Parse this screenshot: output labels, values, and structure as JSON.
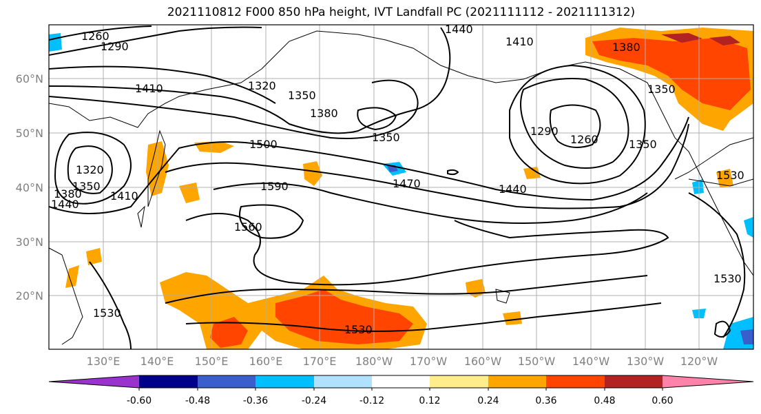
{
  "title": "2021110812 F000 850 hPa height, IVT Landfall PC (2021111112 - 2021111312)",
  "lat_labels": [
    "60°N",
    "50°N",
    "40°N",
    "30°N",
    "20°N"
  ],
  "lon_labels": [
    "130°E",
    "140°E",
    "150°E",
    "160°E",
    "170°E",
    "180°W",
    "170°W",
    "160°W",
    "150°W",
    "140°W",
    "130°W",
    "120°W"
  ],
  "contour_labels": [
    "1260",
    "1290",
    "1440",
    "1410",
    "1380",
    "1320",
    "1350",
    "1410",
    "1380",
    "1350",
    "1290",
    "1350",
    "1320",
    "1350",
    "1380",
    "1410",
    "1440",
    "1500",
    "1260",
    "1350",
    "1590",
    "1470",
    "1440",
    "1530",
    "1560",
    "1530",
    "1530",
    "1530"
  ],
  "colorbar": {
    "ticks": [
      "-0.60",
      "-0.48",
      "-0.36",
      "-0.24",
      "-0.12",
      "0.12",
      "0.24",
      "0.36",
      "0.48",
      "0.60"
    ],
    "colors": [
      "#9a32cd",
      "#00008b",
      "#3a5fcd",
      "#00bfff",
      "#b0e2ff",
      "#ffffff",
      "#ffec8b",
      "#ffa500",
      "#ff4500",
      "#b22222",
      "#ff82ab"
    ]
  }
}
